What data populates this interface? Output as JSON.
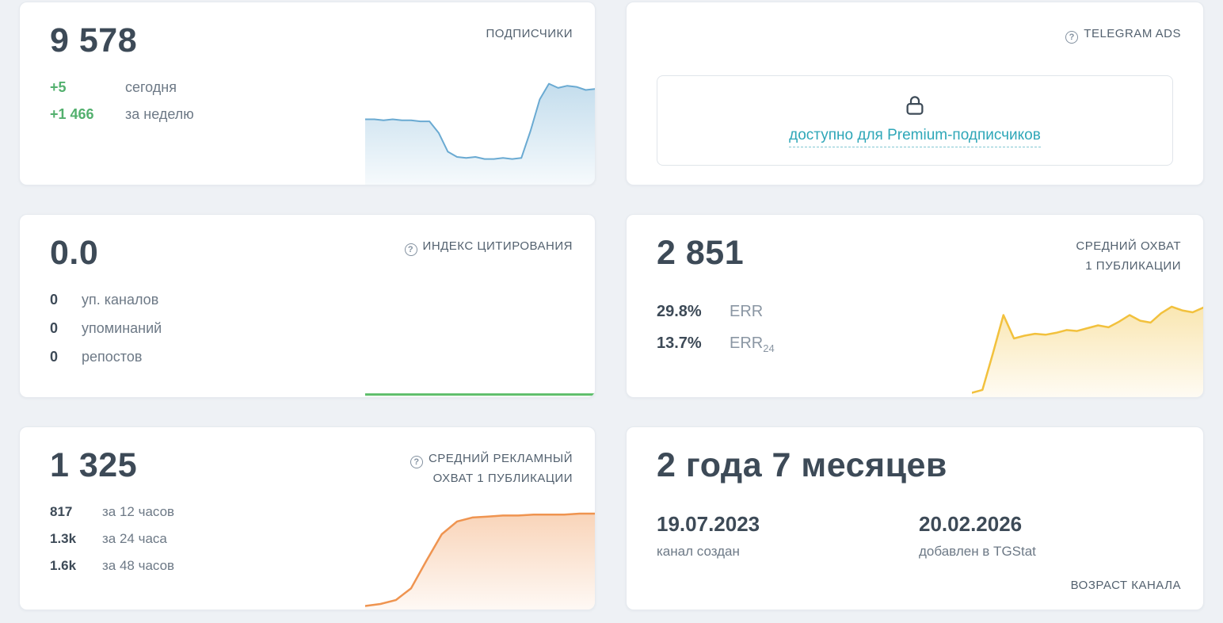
{
  "colors": {
    "page_background": "#eef1f5",
    "card_background": "#ffffff",
    "heading_text": "#3d4a57",
    "muted_text": "#6d7986",
    "card_title_text": "#53616f",
    "positive_green": "#53b06e",
    "premium_link_teal": "#2fa7b8",
    "spark_blue": "#6aaad2",
    "spark_green": "#5bbd68",
    "spark_yellow": "#f2c13d",
    "spark_orange": "#ef9450"
  },
  "icons": {
    "question_circle": "?",
    "lock": "padlock-outline"
  },
  "cards": {
    "subscribers": {
      "title": "ПОДПИСЧИКИ",
      "value": "9 578",
      "rows": [
        {
          "value": "+5",
          "label": "сегодня"
        },
        {
          "value": "+1 466",
          "label": "за неделю"
        }
      ]
    },
    "telegram_ads": {
      "title": "TELEGRAM ADS",
      "link": "доступно для Premium-подписчиков"
    },
    "citation_index": {
      "title": "ИНДЕКС ЦИТИРОВАНИЯ",
      "value": "0.0",
      "rows": [
        {
          "value": "0",
          "label": "уп. каналов"
        },
        {
          "value": "0",
          "label": "упоминаний"
        },
        {
          "value": "0",
          "label": "репостов"
        }
      ]
    },
    "avg_reach": {
      "title_line1": "СРЕДНИЙ ОХВАТ",
      "title_line2": "1 ПУБЛИКАЦИИ",
      "value": "2 851",
      "rows": [
        {
          "value": "29.8%",
          "label": "ERR",
          "sub": ""
        },
        {
          "value": "13.7%",
          "label": "ERR",
          "sub": "24"
        }
      ]
    },
    "avg_ad_reach": {
      "title_line1": "СРЕДНИЙ РЕКЛАМНЫЙ",
      "title_line2": "ОХВАТ 1 ПУБЛИКАЦИИ",
      "value": "1 325",
      "rows": [
        {
          "value": "817",
          "label": "за 12 часов"
        },
        {
          "value": "1.3k",
          "label": "за 24 часа"
        },
        {
          "value": "1.6k",
          "label": "за 48 часов"
        }
      ]
    },
    "channel_age": {
      "value": "2 года 7 месяцев",
      "created_date": "19.07.2023",
      "created_label": "канал создан",
      "added_date": "20.02.2026",
      "added_label": "добавлен в TGStat",
      "footer": "ВОЗРАСТ КАНАЛА"
    }
  },
  "chart_data": [
    {
      "id": "subscribers-sparkline",
      "type": "area",
      "label": "Подписчики — динамика",
      "axes_visible": false,
      "note": "unlabeled sparkline; values are normalized 0-100 of chart height",
      "values": [
        61,
        61,
        60,
        61,
        60,
        60,
        59,
        59,
        48,
        30,
        25,
        24,
        25,
        23,
        23,
        24,
        23,
        24,
        50,
        80,
        95,
        91,
        93,
        92,
        89,
        90
      ],
      "color": "#6aaad2",
      "stroke_width": 2
    },
    {
      "id": "citation-index-line",
      "type": "line",
      "label": "Индекс цитирования — динамика (нулевая)",
      "axes_visible": false,
      "note": "flat line at zero",
      "values": [
        10,
        10,
        10,
        10,
        10,
        10,
        10,
        10,
        10,
        10
      ],
      "color": "#5bbd68",
      "stroke_width": 3
    },
    {
      "id": "avg-reach-sparkline",
      "type": "area",
      "label": "Средний охват 1 публикации — динамика",
      "axes_visible": false,
      "note": "unlabeled sparkline; values are normalized 0-100 of chart height",
      "values": [
        3,
        6,
        45,
        86,
        61,
        64,
        66,
        65,
        67,
        70,
        69,
        72,
        75,
        73,
        79,
        86,
        80,
        78,
        88,
        95,
        91,
        89,
        94
      ],
      "color": "#f2c13d",
      "stroke_width": 2.5
    },
    {
      "id": "avg-ad-reach-sparkline",
      "type": "area",
      "label": "Средний рекламный охват 1 публикации — динамика",
      "axes_visible": false,
      "note": "unlabeled sparkline; values are normalized 0-100 of chart height",
      "values": [
        2,
        4,
        8,
        20,
        48,
        75,
        88,
        92,
        93,
        94,
        94,
        95,
        95,
        95,
        96,
        96
      ],
      "color": "#ef9450",
      "stroke_width": 2.5
    }
  ]
}
